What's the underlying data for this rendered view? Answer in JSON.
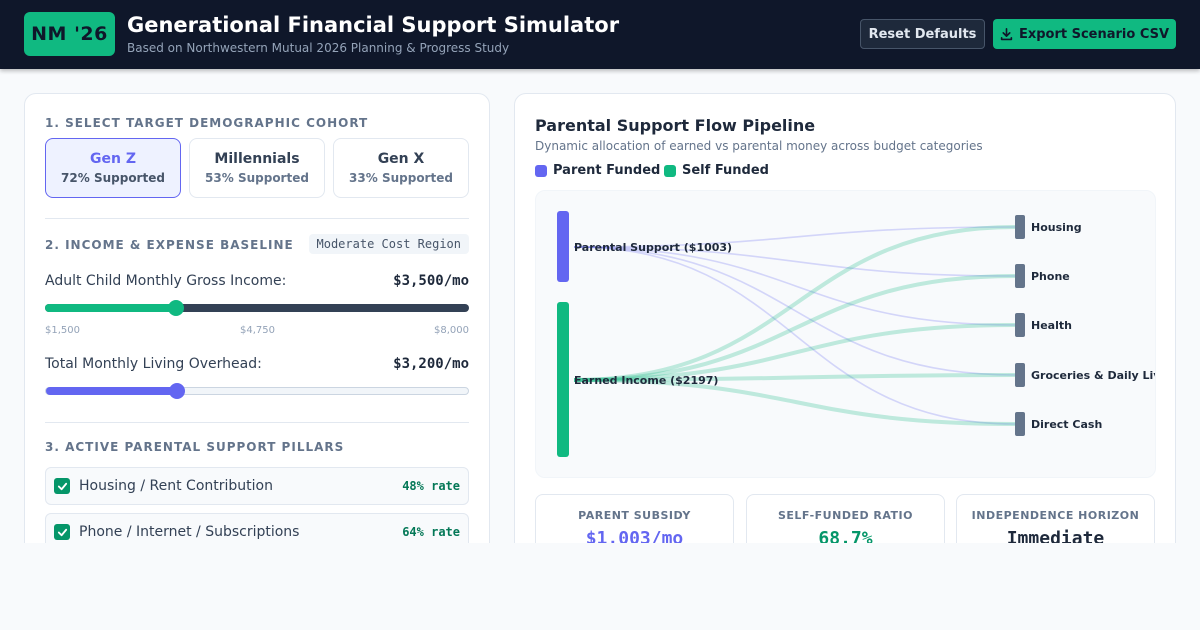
{
  "header": {
    "logo": "NM '26",
    "title": "Generational Financial Support Simulator",
    "subtitle": "Based on Northwestern Mutual 2026 Planning & Progress Study",
    "reset_label": "Reset Defaults",
    "export_label": "Export Scenario CSV"
  },
  "cohort_section": {
    "label": "1. Select Target Demographic Cohort",
    "cohorts": [
      {
        "name": "Gen Z",
        "rate": "72% Supported",
        "active": true
      },
      {
        "name": "Millennials",
        "rate": "53% Supported",
        "active": false
      },
      {
        "name": "Gen X",
        "rate": "33% Supported",
        "active": false
      }
    ]
  },
  "income_section": {
    "label": "2. Income & Expense Baseline",
    "region": "Moderate Cost Region",
    "income": {
      "label": "Adult Child Monthly Gross Income:",
      "value": "$3,500/mo",
      "level": 0.31,
      "min": "$1,500",
      "mid": "$4,750",
      "max": "$8,000"
    },
    "overhead": {
      "label": "Total Monthly Living Overhead:",
      "value": "$3,200/mo",
      "level": 0.31
    }
  },
  "pillars_section": {
    "label": "3. Active Parental Support Pillars",
    "pillars": [
      {
        "label": "Housing / Rent Contribution",
        "rate": "48% rate",
        "checked": true
      },
      {
        "label": "Phone / Internet / Subscriptions",
        "rate": "64% rate",
        "checked": true
      }
    ]
  },
  "flow": {
    "title": "Parental Support Flow Pipeline",
    "subtitle": "Dynamic allocation of earned vs parental money across budget categories",
    "legend": [
      {
        "label": "Parent Funded",
        "color": "#6366f1"
      },
      {
        "label": "Self Funded",
        "color": "#10b981"
      }
    ],
    "sources": [
      {
        "label": "Parental Support ($1003)",
        "color": "#6366f1"
      },
      {
        "label": "Earned Income ($2197)",
        "color": "#10b981"
      }
    ],
    "targets": [
      "Housing",
      "Phone",
      "Health",
      "Groceries & Daily Living",
      "Direct Cash"
    ]
  },
  "stats": [
    {
      "label": "Parent Subsidy",
      "value": "$1,003/mo",
      "color": "#6366f1"
    },
    {
      "label": "Self-Funded Ratio",
      "value": "68.7%",
      "color": "#059669"
    },
    {
      "label": "Independence Horizon",
      "value": "Immediate",
      "color": "#1e293b"
    }
  ]
}
